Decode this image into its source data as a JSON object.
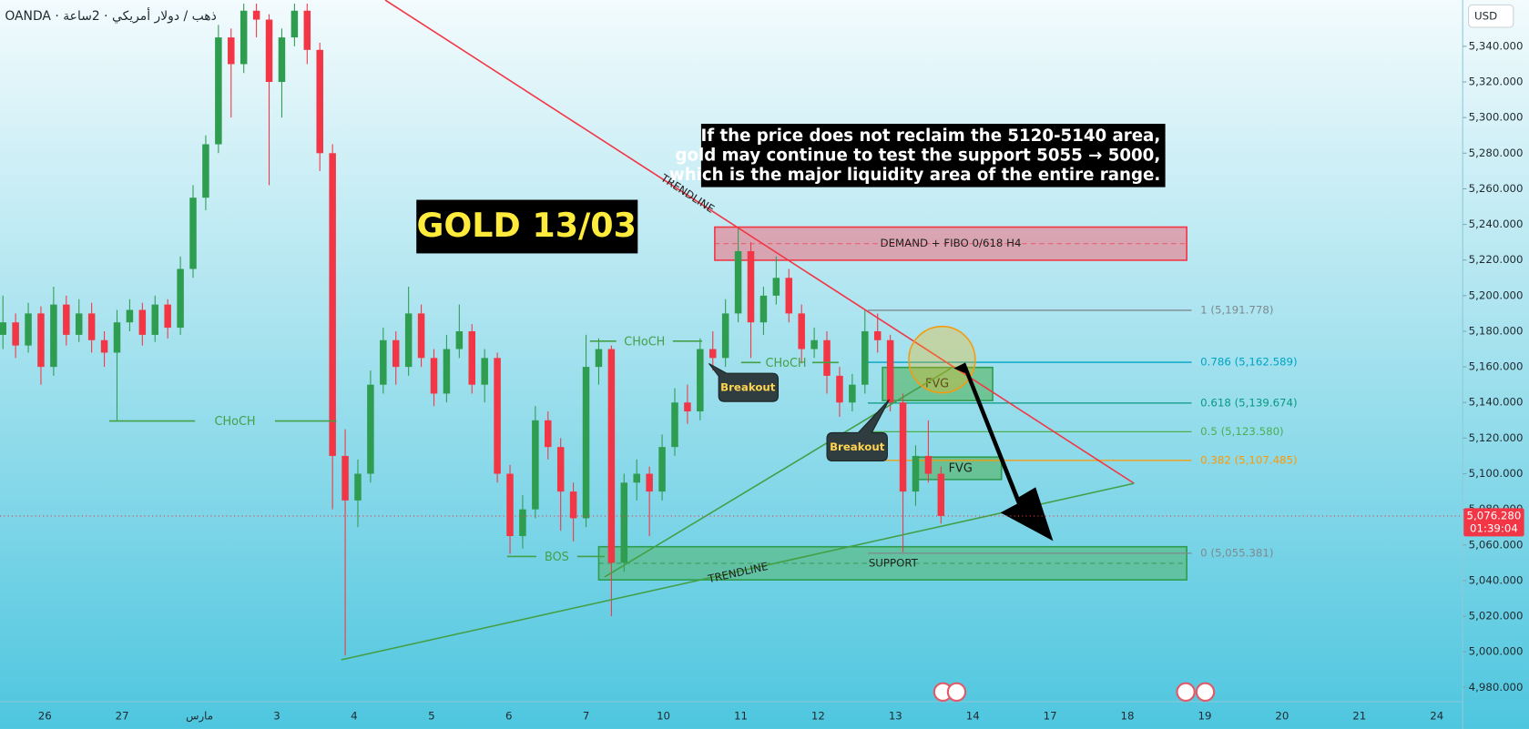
{
  "header": {
    "symbol": "OANDA · ذهب / دولار أمريكي · 2ساعة",
    "currency": "USD"
  },
  "chart_data": {
    "type": "candlestick",
    "title": "GOLD 13/03",
    "note": [
      "If the price does not reclaim the 5120-5140 area,",
      "gold may continue to test the support 5055 → 5000,",
      "which is the major liquidity area of the entire range."
    ],
    "categories": [
      "26",
      "27",
      "مارس",
      "3",
      "4",
      "5",
      "6",
      "7",
      "10",
      "11",
      "12",
      "13",
      "14",
      "17",
      "18",
      "19",
      "20",
      "21",
      "24"
    ],
    "candles": [
      [
        5178,
        5200,
        5170,
        5185
      ],
      [
        5185,
        5190,
        5165,
        5172
      ],
      [
        5172,
        5196,
        5168,
        5190
      ],
      [
        5190,
        5194,
        5150,
        5160
      ],
      [
        5160,
        5205,
        5155,
        5195
      ],
      [
        5195,
        5200,
        5172,
        5178
      ],
      [
        5178,
        5198,
        5174,
        5190
      ],
      [
        5190,
        5196,
        5168,
        5175
      ],
      [
        5175,
        5180,
        5160,
        5168
      ],
      [
        5168,
        5192,
        5130,
        5185
      ],
      [
        5185,
        5198,
        5180,
        5192
      ],
      [
        5192,
        5196,
        5172,
        5178
      ],
      [
        5178,
        5200,
        5174,
        5195
      ],
      [
        5195,
        5198,
        5176,
        5182
      ],
      [
        5182,
        5222,
        5178,
        5215
      ],
      [
        5215,
        5262,
        5210,
        5255
      ],
      [
        5255,
        5290,
        5248,
        5285
      ],
      [
        5285,
        5352,
        5280,
        5345
      ],
      [
        5345,
        5350,
        5300,
        5330
      ],
      [
        5330,
        5364,
        5325,
        5360
      ],
      [
        5360,
        5364,
        5345,
        5355
      ],
      [
        5355,
        5358,
        5262,
        5320
      ],
      [
        5320,
        5350,
        5300,
        5345
      ],
      [
        5345,
        5364,
        5340,
        5360
      ],
      [
        5360,
        5364,
        5330,
        5338
      ],
      [
        5338,
        5342,
        5270,
        5280
      ],
      [
        5280,
        5285,
        5080,
        5110
      ],
      [
        5110,
        5125,
        4998,
        5085
      ],
      [
        5085,
        5108,
        5070,
        5100
      ],
      [
        5100,
        5158,
        5095,
        5150
      ],
      [
        5150,
        5182,
        5145,
        5175
      ],
      [
        5175,
        5180,
        5150,
        5160
      ],
      [
        5160,
        5205,
        5155,
        5190
      ],
      [
        5190,
        5195,
        5160,
        5165
      ],
      [
        5165,
        5170,
        5138,
        5145
      ],
      [
        5145,
        5178,
        5140,
        5170
      ],
      [
        5170,
        5195,
        5165,
        5180
      ],
      [
        5180,
        5184,
        5145,
        5150
      ],
      [
        5150,
        5170,
        5140,
        5165
      ],
      [
        5165,
        5168,
        5095,
        5100
      ],
      [
        5100,
        5105,
        5055,
        5065
      ],
      [
        5065,
        5088,
        5058,
        5080
      ],
      [
        5080,
        5138,
        5075,
        5130
      ],
      [
        5130,
        5135,
        5108,
        5115
      ],
      [
        5115,
        5120,
        5068,
        5090
      ],
      [
        5090,
        5095,
        5062,
        5075
      ],
      [
        5075,
        5178,
        5070,
        5160
      ],
      [
        5160,
        5176,
        5150,
        5170
      ],
      [
        5170,
        5172,
        5020,
        5050
      ],
      [
        5050,
        5100,
        5045,
        5095
      ],
      [
        5095,
        5108,
        5085,
        5100
      ],
      [
        5100,
        5104,
        5065,
        5090
      ],
      [
        5090,
        5122,
        5085,
        5115
      ],
      [
        5115,
        5148,
        5110,
        5140
      ],
      [
        5140,
        5150,
        5128,
        5135
      ],
      [
        5135,
        5176,
        5130,
        5170
      ],
      [
        5170,
        5180,
        5158,
        5165
      ],
      [
        5165,
        5198,
        5160,
        5190
      ],
      [
        5190,
        5238,
        5185,
        5225
      ],
      [
        5225,
        5230,
        5165,
        5185
      ],
      [
        5185,
        5205,
        5178,
        5200
      ],
      [
        5200,
        5222,
        5195,
        5210
      ],
      [
        5210,
        5215,
        5185,
        5190
      ],
      [
        5190,
        5195,
        5162,
        5170
      ],
      [
        5170,
        5182,
        5165,
        5175
      ],
      [
        5175,
        5180,
        5145,
        5155
      ],
      [
        5155,
        5160,
        5132,
        5140
      ],
      [
        5140,
        5156,
        5135,
        5150
      ],
      [
        5150,
        5192,
        5145,
        5180
      ],
      [
        5180,
        5190,
        5168,
        5175
      ],
      [
        5175,
        5178,
        5135,
        5140
      ],
      [
        5140,
        5145,
        5056,
        5090
      ],
      [
        5090,
        5116,
        5082,
        5110
      ],
      [
        5110,
        5130,
        5095,
        5100
      ],
      [
        5100,
        5104,
        5072,
        5076.28
      ]
    ],
    "up_color": "#2e9d4f",
    "down_color": "#f23645",
    "ylim": [
      4972,
      5366
    ],
    "yticks": [
      {
        "value": 4980,
        "label": "4,980.000"
      },
      {
        "value": 5000,
        "label": "5,000.000"
      },
      {
        "value": 5020,
        "label": "5,020.000"
      },
      {
        "value": 5040,
        "label": "5,040.000"
      },
      {
        "value": 5060,
        "label": "5,060.000"
      },
      {
        "value": 5080,
        "label": "5,080.000"
      },
      {
        "value": 5100,
        "label": "5,100.000"
      },
      {
        "value": 5120,
        "label": "5,120.000"
      },
      {
        "value": 5140,
        "label": "5,140.000"
      },
      {
        "value": 5160,
        "label": "5,160.000"
      },
      {
        "value": 5180,
        "label": "5,180.000"
      },
      {
        "value": 5200,
        "label": "5,200.000"
      },
      {
        "value": 5220,
        "label": "5,220.000"
      },
      {
        "value": 5240,
        "label": "5,240.000"
      },
      {
        "value": 5260,
        "label": "5,260.000"
      },
      {
        "value": 5280,
        "label": "5,280.000"
      },
      {
        "value": 5300,
        "label": "5,300.000"
      },
      {
        "value": 5320,
        "label": "5,320.000"
      },
      {
        "value": 5340,
        "label": "5,340.000"
      }
    ],
    "grid": false,
    "last_price": {
      "value": 5076.28,
      "label": "5,076.280"
    },
    "countdown": "01:39:04",
    "fib_levels": [
      {
        "value": 5191.778,
        "label": "1 (5,191.778)",
        "color": "#7d8a8f"
      },
      {
        "value": 5162.589,
        "label": "0.786 (5,162.589)",
        "color": "#00a3c4"
      },
      {
        "value": 5139.674,
        "label": "0.618 (5,139.674)",
        "color": "#089981"
      },
      {
        "value": 5123.58,
        "label": "0.5 (5,123.580)",
        "color": "#4caf50"
      },
      {
        "value": 5107.485,
        "label": "0.382 (5,107.485)",
        "color": "#ff9800"
      },
      {
        "value": 5055.381,
        "label": "0 (5,055.381)",
        "color": "#7d8a8f"
      }
    ],
    "annotations": {
      "demand": "DEMAND + FIBO 0/618 H4",
      "support": "SUPPORT",
      "fvg": [
        "FVG",
        "FVG"
      ],
      "trendline": [
        "TRENDLINE",
        "TRENDLINE"
      ],
      "choch": [
        "CHoCH",
        "CHoCH",
        "CHoCH"
      ],
      "bos": "BOS",
      "breakout": [
        "Breakout",
        "Breakout"
      ]
    }
  }
}
